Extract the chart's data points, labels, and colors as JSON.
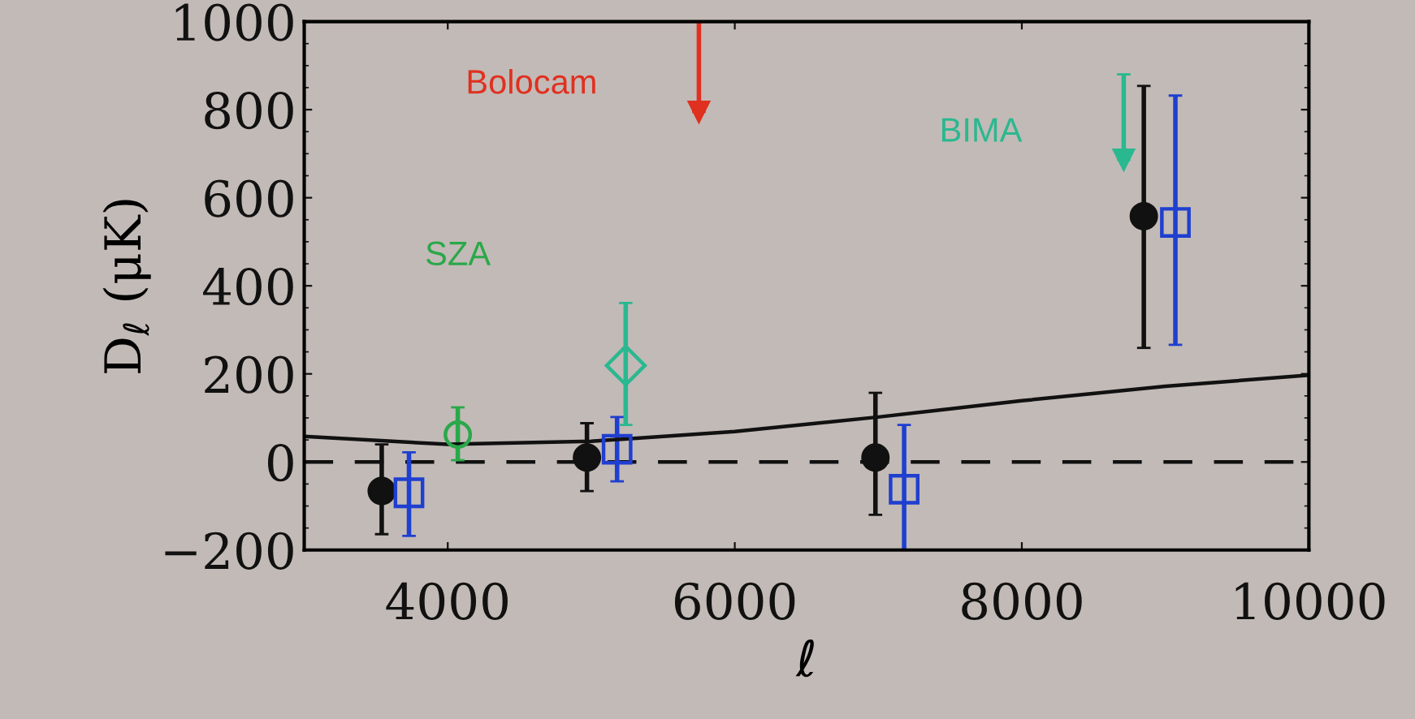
{
  "chart_data": {
    "type": "scatter",
    "xlabel": "ℓ",
    "ylabel": "D$_{ℓ}$ (μK)",
    "xlim": [
      3000,
      10000
    ],
    "xticks": [
      4000,
      6000,
      8000,
      10000
    ],
    "ylim": [
      -200,
      1000
    ],
    "yticks": [
      -200,
      0,
      200,
      400,
      600,
      800,
      1000
    ],
    "grid": false,
    "legend": false,
    "ref_lines": [
      {
        "axis": "y",
        "value": 0,
        "line_style": "dashed",
        "color": "#111111"
      }
    ],
    "series": [
      {
        "color": "#111111",
        "marker": "circle",
        "x": [
          3540,
          4970,
          6980,
          8850
        ],
        "values": [
          -66,
          10,
          10,
          558
        ],
        "errors": [
          [
            -164,
            40
          ],
          [
            -66,
            88
          ],
          [
            -120,
            157
          ],
          [
            259,
            854
          ]
        ]
      },
      {
        "color": "#1f3fd0",
        "marker": "square",
        "x": [
          3730,
          5180,
          7180,
          9070
        ],
        "values": [
          -70,
          29,
          -62,
          544
        ],
        "errors": [
          [
            -168,
            22
          ],
          [
            -44,
            102
          ],
          [
            -200,
            84
          ],
          [
            266,
            832
          ]
        ]
      },
      {
        "name": "SZA",
        "color": "#2aa84a",
        "marker": "circle",
        "x": [
          4070
        ],
        "values": [
          62
        ],
        "errors": [
          [
            4,
            124
          ]
        ]
      },
      {
        "color": "#2ab890",
        "marker": "diamond",
        "x": [
          5240
        ],
        "values": [
          219
        ],
        "errors": [
          [
            84,
            361
          ]
        ]
      },
      {
        "name": "Bolocam",
        "color": "#e03020",
        "marker": "triangle",
        "x": [
          5750
        ],
        "values": [
          795
        ],
        "errors": [
          [
            795,
            1000
          ]
        ]
      },
      {
        "name": "BIMA",
        "color": "#2ab890",
        "marker": "triangle",
        "x": [
          8710
        ],
        "values": [
          686
        ],
        "errors": [
          [
            686,
            880
          ]
        ]
      },
      {
        "type": "line",
        "color": "#111111",
        "line_style": "solid",
        "marker": "none",
        "x": [
          3000,
          4000,
          5000,
          6000,
          7000,
          8000,
          9000,
          10000
        ],
        "values": [
          58,
          40,
          47,
          69,
          102,
          139,
          172,
          197
        ]
      }
    ]
  }
}
